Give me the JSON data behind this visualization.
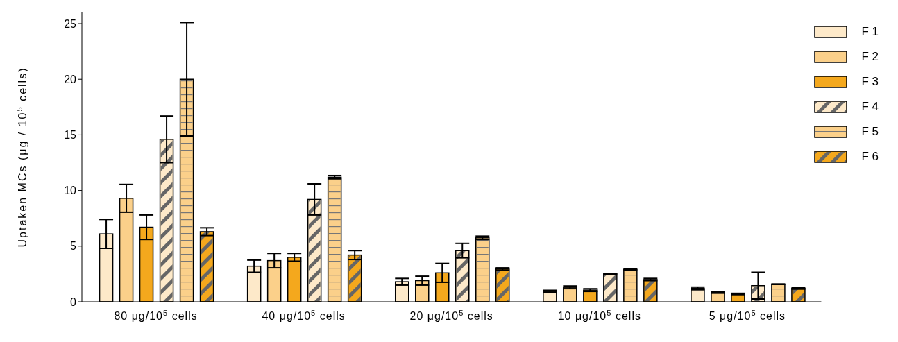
{
  "chart_data": {
    "type": "bar",
    "ylabel": "Uptaken MCs (μg / 10$^{5}$ cells)",
    "categories": [
      "80 μg/10$^{5}$ cells",
      "40 μg/10$^{5}$ cells",
      "20 μg/10$^{5}$ cells",
      "10 μg/10$^{5}$ cells",
      "5 μg/10$^{5}$ cells"
    ],
    "series": [
      {
        "name": "F 1",
        "color": "#fde9c9",
        "values": [
          6.1,
          3.2,
          1.8,
          0.95,
          1.2
        ],
        "errors": [
          1.3,
          0.55,
          0.3,
          0.08,
          0.12
        ]
      },
      {
        "name": "F 2",
        "color": "#fbd08a",
        "values": [
          9.3,
          3.7,
          1.9,
          1.3,
          0.85
        ],
        "errors": [
          1.25,
          0.65,
          0.4,
          0.12,
          0.08
        ]
      },
      {
        "name": "F 3",
        "color": "#f4a81d",
        "values": [
          6.7,
          4.0,
          2.6,
          1.05,
          0.7
        ],
        "errors": [
          1.1,
          0.35,
          0.85,
          0.12,
          0.06
        ]
      },
      {
        "name": "F 4",
        "color": "#fde9c9",
        "values": [
          14.6,
          9.2,
          4.6,
          2.5,
          1.45
        ],
        "errors": [
          2.1,
          1.4,
          0.65,
          0.05,
          1.2
        ]
      },
      {
        "name": "F 5",
        "color": "#fbd08a",
        "values": [
          20.0,
          11.2,
          5.75,
          2.9,
          1.58
        ],
        "errors": [
          5.1,
          0.15,
          0.15,
          0.06,
          0.02
        ]
      },
      {
        "name": "F 6",
        "color": "#f4a81d",
        "values": [
          6.3,
          4.2,
          2.95,
          2.0,
          1.2
        ],
        "errors": [
          0.35,
          0.4,
          0.1,
          0.1,
          0.06
        ]
      }
    ],
    "ylim": [
      0,
      26
    ],
    "yticks": [
      0,
      5,
      10,
      15,
      20,
      25
    ],
    "legend": "top right"
  }
}
